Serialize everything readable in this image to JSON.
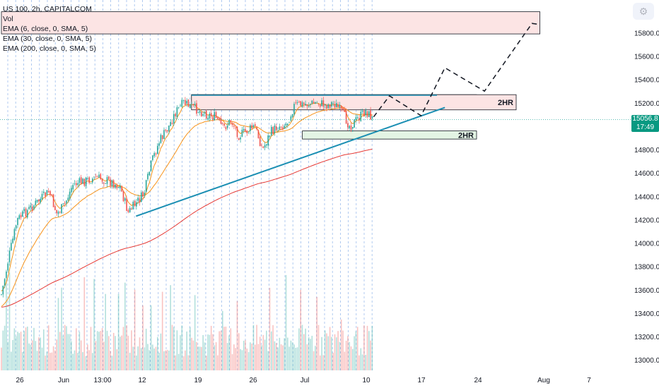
{
  "legend": {
    "symbol": "US 100, 2h, CAPITALCOM",
    "vol": "Vol",
    "ema1": "EMA (6, close, 0, SMA, 5)",
    "ema2": "EMA (30, close, 0, SMA, 5)",
    "ema3": "EMA (200, close, 0, SMA, 5)"
  },
  "price_badge": {
    "value": "15056.8",
    "countdown": "17:49"
  },
  "zone_labels": {
    "upper": "2HR",
    "lower": "2HR"
  },
  "colors": {
    "up": "#26a69a",
    "down": "#ef5350",
    "ema_fast": "#f7931a",
    "ema_slow": "#e53935",
    "trendline": "#1b8fb3",
    "resistance_zone": "#fce4e4",
    "support_zone": "#e3f4e4",
    "session": "#7ca7e6"
  },
  "icons": {
    "settings": "gear-icon"
  },
  "chart_data": {
    "type": "candlestick",
    "title": "US 100, 2h, CAPITALCOM",
    "x_tick_labels": [
      "26",
      "Jun",
      "13:00",
      "12",
      "19",
      "26",
      "Jul",
      "10",
      "17",
      "24",
      "Aug",
      "7"
    ],
    "y_ticks": [
      13000,
      13200,
      13400,
      13600,
      13800,
      14000,
      14200,
      14400,
      14600,
      14800,
      15000,
      15200,
      15400,
      15600,
      15800
    ],
    "y_tick_labels": [
      "13000.0",
      "13200.0",
      "13400.0",
      "13600.0",
      "13800.0",
      "14000.0",
      "14200.0",
      "14400.0",
      "14600.0",
      "14800.0",
      "15000.0",
      "15200.0",
      "15400.0",
      "15600.0",
      "15800.0"
    ],
    "ylim": [
      12880,
      16020
    ],
    "last_price": 15056.8,
    "close_path": [
      {
        "date": "2023-05-24",
        "close": 13560
      },
      {
        "date": "2023-05-25",
        "close": 13900
      },
      {
        "date": "2023-05-26",
        "close": 14200
      },
      {
        "date": "2023-05-29",
        "close": 14380
      },
      {
        "date": "2023-05-30",
        "close": 14440
      },
      {
        "date": "2023-05-31",
        "close": 14250
      },
      {
        "date": "2023-06-01",
        "close": 14330
      },
      {
        "date": "2023-06-02",
        "close": 14500
      },
      {
        "date": "2023-06-05",
        "close": 14560
      },
      {
        "date": "2023-06-06",
        "close": 14540
      },
      {
        "date": "2023-06-07",
        "close": 14520
      },
      {
        "date": "2023-06-08",
        "close": 14480
      },
      {
        "date": "2023-06-09",
        "close": 14260
      },
      {
        "date": "2023-06-11",
        "close": 14420
      },
      {
        "date": "2023-06-12",
        "close": 14700
      },
      {
        "date": "2023-06-13",
        "close": 14880
      },
      {
        "date": "2023-06-14",
        "close": 14980
      },
      {
        "date": "2023-06-15",
        "close": 15120
      },
      {
        "date": "2023-06-16",
        "close": 15200
      },
      {
        "date": "2023-06-19",
        "close": 15100
      },
      {
        "date": "2023-06-20",
        "close": 15080
      },
      {
        "date": "2023-06-21",
        "close": 14980
      },
      {
        "date": "2023-06-22",
        "close": 15050
      },
      {
        "date": "2023-06-23",
        "close": 14920
      },
      {
        "date": "2023-06-25",
        "close": 15000
      },
      {
        "date": "2023-06-26",
        "close": 14800
      },
      {
        "date": "2023-06-27",
        "close": 14950
      },
      {
        "date": "2023-06-28",
        "close": 15000
      },
      {
        "date": "2023-06-29",
        "close": 15020
      },
      {
        "date": "2023-06-30",
        "close": 15180
      },
      {
        "date": "2023-07-03",
        "close": 15200
      },
      {
        "date": "2023-07-04",
        "close": 15180
      },
      {
        "date": "2023-07-05",
        "close": 15200
      },
      {
        "date": "2023-07-06",
        "close": 15120
      },
      {
        "date": "2023-07-07",
        "close": 15000
      },
      {
        "date": "2023-07-09",
        "close": 15130
      },
      {
        "date": "2023-07-10",
        "close": 15056.8
      }
    ],
    "ema_6_endpoints": [
      {
        "date": "2023-05-24",
        "value": 13600
      },
      {
        "date": "2023-07-10",
        "value": 15070
      }
    ],
    "ema_30_endpoints": [
      {
        "date": "2023-05-24",
        "value": 13450
      },
      {
        "date": "2023-07-10",
        "value": 15020
      }
    ],
    "ema_200_endpoints": [
      {
        "date": "2023-05-24",
        "value": 13450
      },
      {
        "date": "2023-07-10",
        "value": 15000
      }
    ],
    "zones": [
      {
        "label": "",
        "from": "2023-06-17",
        "to": "2023-07-23",
        "low": 15220,
        "high": 15270
      },
      {
        "label": "2HR",
        "from": "2023-06-17",
        "to": "2023-07-28",
        "low": 15140,
        "high": 15270
      },
      {
        "label": "2HR",
        "from": "2023-07-01",
        "to": "2023-07-23",
        "low": 14890,
        "high": 14960
      },
      {
        "label": "",
        "from": "2023-05-24",
        "to": "2023-07-31",
        "low": 15790,
        "high": 15980
      }
    ],
    "trendlines": [
      {
        "from": {
          "date": "2023-06-10",
          "value": 14230
        },
        "to": {
          "date": "2023-07-19",
          "value": 15160
        }
      },
      {
        "from": {
          "date": "2023-06-17",
          "value": 15265
        },
        "to": {
          "date": "2023-07-18",
          "value": 15265
        }
      }
    ],
    "projection": [
      {
        "date": "2023-07-10",
        "value": 15080
      },
      {
        "date": "2023-07-12",
        "value": 15260
      },
      {
        "date": "2023-07-16",
        "value": 15090
      },
      {
        "date": "2023-07-19",
        "value": 15500
      },
      {
        "date": "2023-07-24",
        "value": 15300
      },
      {
        "date": "2023-07-30",
        "value": 15880
      },
      {
        "date": "2023-07-31",
        "value": 15870
      }
    ],
    "volume_scale": "relative",
    "grid": true,
    "legend": "top-left"
  }
}
